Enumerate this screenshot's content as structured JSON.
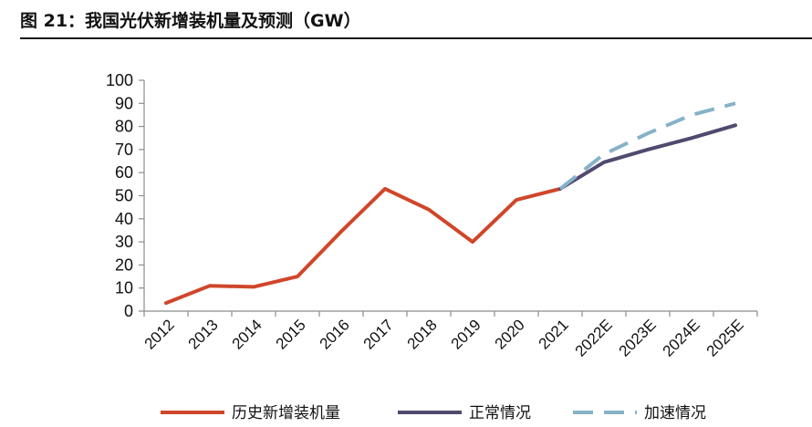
{
  "figure": {
    "title": "图 21：我国光伏新增装机量及预测（GW）"
  },
  "chart_data": {
    "type": "line",
    "title": "",
    "xlabel": "",
    "ylabel": "",
    "categories": [
      "2012",
      "2013",
      "2014",
      "2015",
      "2016",
      "2017",
      "2018",
      "2019",
      "2020",
      "2021",
      "2022E",
      "2023E",
      "2024E",
      "2025E"
    ],
    "y_ticks": [
      "0",
      "10",
      "20",
      "30",
      "40",
      "50",
      "60",
      "70",
      "80",
      "90",
      "100"
    ],
    "ylim": [
      0,
      100
    ],
    "grid": false,
    "legend_position": "bottom",
    "series": [
      {
        "name": "历史新增装机量",
        "color": "#d0462a",
        "dash": "solid",
        "values": [
          3.5,
          11,
          10.5,
          15,
          34.5,
          53,
          44,
          30,
          48.2,
          53,
          null,
          null,
          null,
          null
        ]
      },
      {
        "name": "正常情况",
        "color": "#504a6e",
        "dash": "solid",
        "values": [
          null,
          null,
          null,
          null,
          null,
          null,
          null,
          null,
          null,
          53,
          64.5,
          70,
          75,
          80.5
        ]
      },
      {
        "name": "加速情况",
        "color": "#86b2c8",
        "dash": "dashed",
        "values": [
          null,
          null,
          null,
          null,
          null,
          null,
          null,
          null,
          null,
          53,
          68,
          77,
          85,
          90
        ]
      }
    ]
  }
}
